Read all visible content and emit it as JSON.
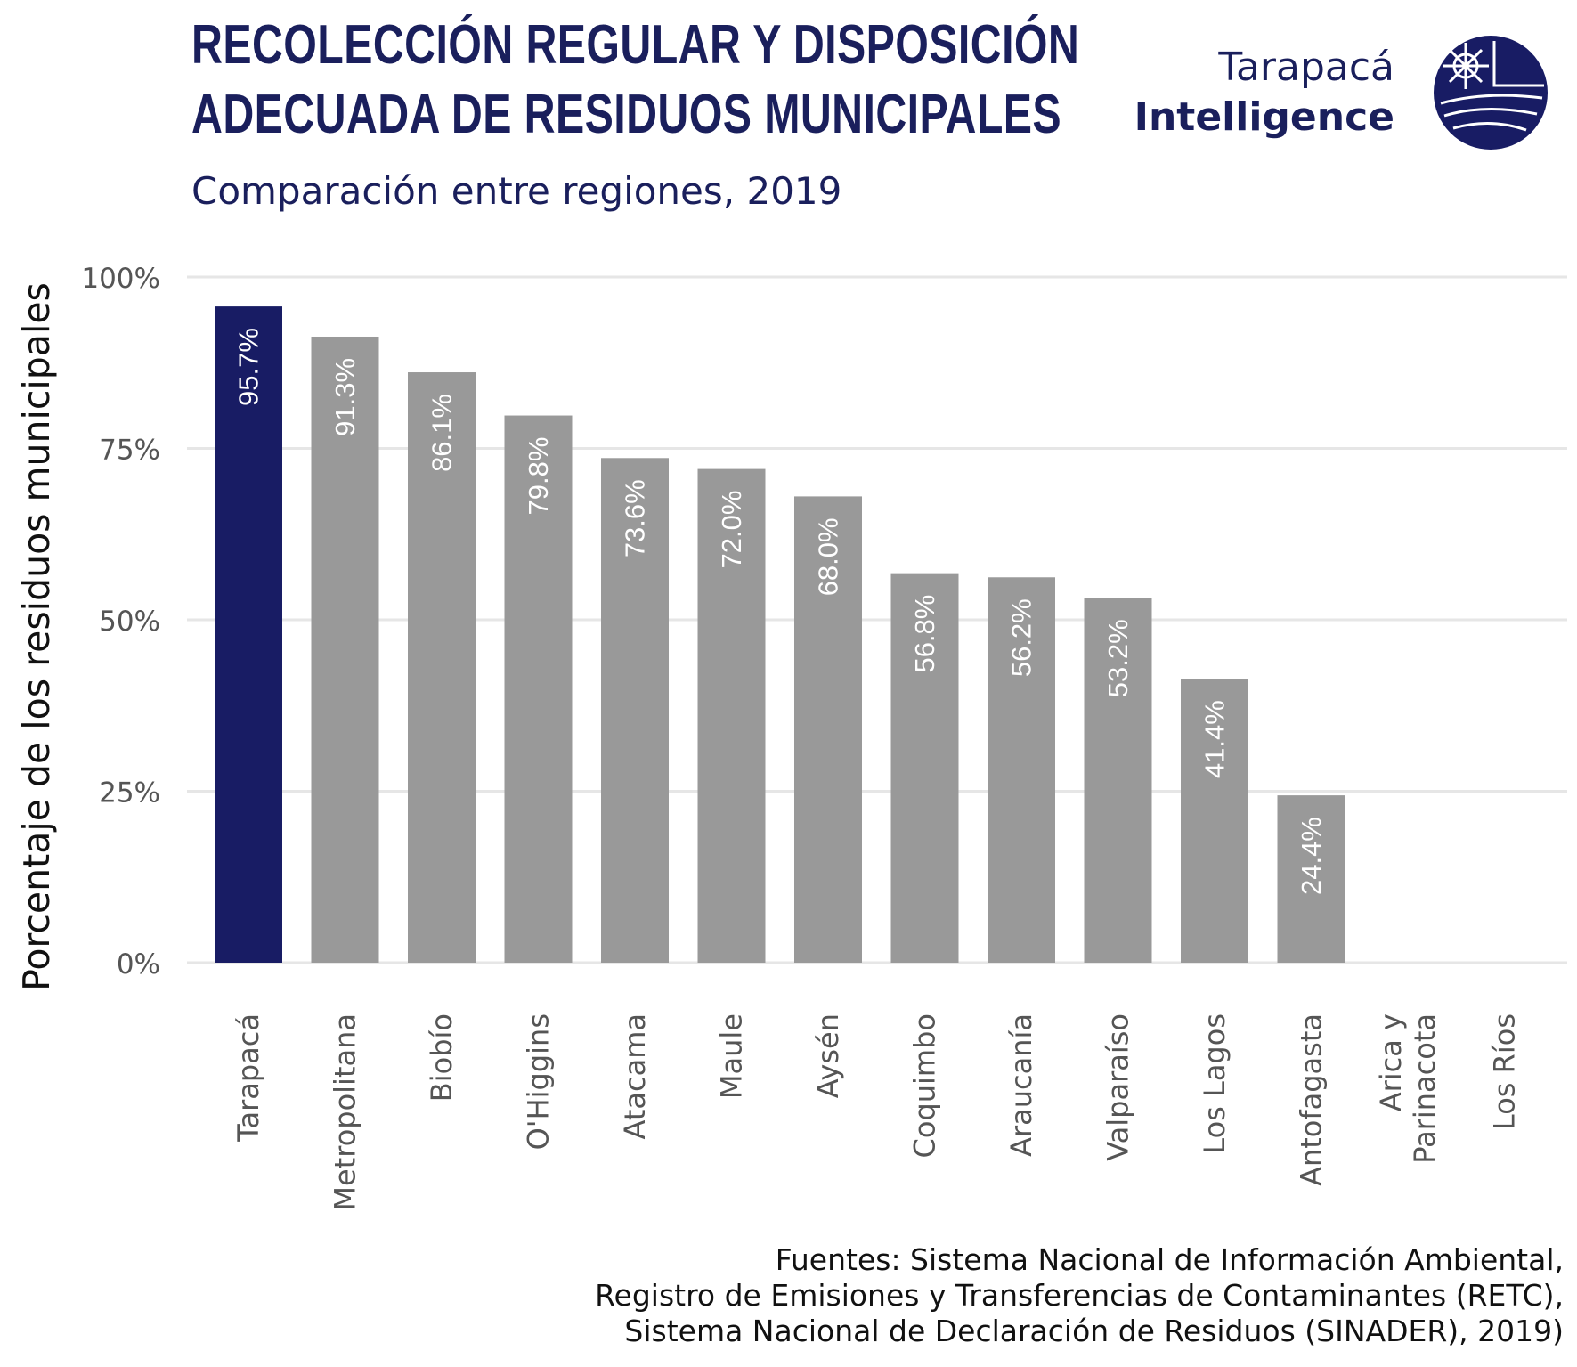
{
  "header": {
    "title_line1": "RECOLECCIÓN REGULAR Y DISPOSICIÓN",
    "title_line2": "ADECUADA DE RESIDUOS MUNICIPALES",
    "subtitle": "Comparación entre regiones, 2019"
  },
  "brand": {
    "line1": "Tarapacá",
    "line2": "Intelligence",
    "logo_icon": "globe-sun-icon"
  },
  "source": {
    "line1": "Fuentes: Sistema Nacional de Información Ambiental,",
    "line2": "Registro de Emisiones y Transferencias de Contaminantes (RETC),",
    "line3": "Sistema Nacional de Declaración de Residuos (SINADER), 2019)"
  },
  "colors": {
    "highlight": "#181c64",
    "bar": "#999999",
    "grid": "#e6e6e6",
    "text_dark": "#1a1f5c"
  },
  "chart_data": {
    "type": "bar",
    "ylabel": "Porcentaje de los residuos municipales",
    "xlabel": "",
    "ylim": [
      0,
      100
    ],
    "yticks": [
      {
        "value": 0,
        "label": "0%"
      },
      {
        "value": 25,
        "label": "25%"
      },
      {
        "value": 50,
        "label": "50%"
      },
      {
        "value": 75,
        "label": "75%"
      },
      {
        "value": 100,
        "label": "100%"
      }
    ],
    "grid": true,
    "highlight_category": "Tarapacá",
    "categories": [
      {
        "name": "Tarapacá",
        "lines": [
          "Tarapacá"
        ]
      },
      {
        "name": "Metropolitana",
        "lines": [
          "Metropolitana"
        ]
      },
      {
        "name": "Biobío",
        "lines": [
          "Biobío"
        ]
      },
      {
        "name": "O'Higgins",
        "lines": [
          "O'Higgins"
        ]
      },
      {
        "name": "Atacama",
        "lines": [
          "Atacama"
        ]
      },
      {
        "name": "Maule",
        "lines": [
          "Maule"
        ]
      },
      {
        "name": "Aysén",
        "lines": [
          "Aysén"
        ]
      },
      {
        "name": "Coquimbo",
        "lines": [
          "Coquimbo"
        ]
      },
      {
        "name": "Araucanía",
        "lines": [
          "Araucanía"
        ]
      },
      {
        "name": "Valparaíso",
        "lines": [
          "Valparaíso"
        ]
      },
      {
        "name": "Los Lagos",
        "lines": [
          "Los Lagos"
        ]
      },
      {
        "name": "Antofagasta",
        "lines": [
          "Antofagasta"
        ]
      },
      {
        "name": "Arica y Parinacota",
        "lines": [
          "Arica y",
          "Parinacota"
        ]
      },
      {
        "name": "Los Ríos",
        "lines": [
          "Los Ríos"
        ]
      }
    ],
    "values": [
      95.7,
      91.3,
      86.1,
      79.8,
      73.6,
      72.0,
      68.0,
      56.8,
      56.2,
      53.2,
      41.4,
      24.4,
      null,
      null
    ],
    "data_labels": [
      "95.7%",
      "91.3%",
      "86.1%",
      "79.8%",
      "73.6%",
      "72.0%",
      "68.0%",
      "56.8%",
      "56.2%",
      "53.2%",
      "41.4%",
      "24.4%",
      "",
      ""
    ]
  }
}
